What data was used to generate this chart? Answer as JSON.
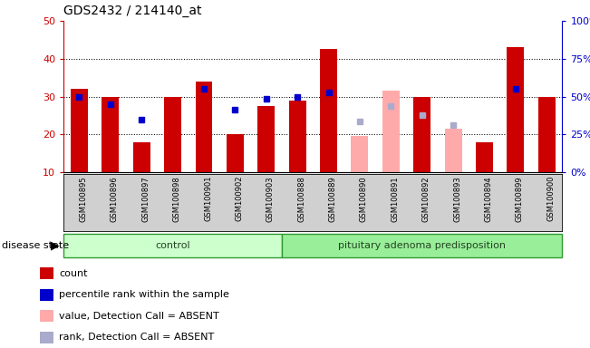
{
  "title": "GDS2432 / 214140_at",
  "samples": [
    "GSM100895",
    "GSM100896",
    "GSM100897",
    "GSM100898",
    "GSM100901",
    "GSM100902",
    "GSM100903",
    "GSM100888",
    "GSM100889",
    "GSM100890",
    "GSM100891",
    "GSM100892",
    "GSM100893",
    "GSM100894",
    "GSM100899",
    "GSM100900"
  ],
  "n_control": 7,
  "red_bars": [
    32,
    30,
    18,
    30,
    34,
    20,
    27.5,
    29,
    42.5,
    null,
    null,
    30,
    null,
    18,
    43,
    30
  ],
  "blue_squares": [
    30,
    28,
    24,
    null,
    32,
    26.5,
    29.5,
    30,
    31,
    null,
    null,
    null,
    null,
    null,
    32,
    null
  ],
  "pink_bars": [
    null,
    null,
    null,
    null,
    null,
    null,
    null,
    null,
    null,
    19.5,
    31.5,
    null,
    21.5,
    null,
    null,
    null
  ],
  "light_blue_sq": [
    null,
    null,
    null,
    null,
    null,
    null,
    null,
    null,
    null,
    23.5,
    27.5,
    25,
    22.5,
    null,
    null,
    null
  ],
  "ylim_left": [
    10,
    50
  ],
  "ylim_right": [
    0,
    100
  ],
  "yticks_left": [
    10,
    20,
    30,
    40,
    50
  ],
  "yticks_right": [
    0,
    25,
    50,
    75,
    100
  ],
  "grid_lines": [
    20,
    30,
    40
  ],
  "bar_width": 0.55,
  "red_color": "#cc0000",
  "pink_color": "#ffaaaa",
  "blue_color": "#0000cc",
  "light_blue_color": "#aaaacc",
  "tick_bg": "#d0d0d0",
  "ctrl_bg": "#ccffcc",
  "dis_bg": "#99ee99",
  "grp_border": "#339933",
  "legend_labels": [
    "count",
    "percentile rank within the sample",
    "value, Detection Call = ABSENT",
    "rank, Detection Call = ABSENT"
  ],
  "legend_colors": [
    "#cc0000",
    "#0000cc",
    "#ffaaaa",
    "#aaaacc"
  ]
}
